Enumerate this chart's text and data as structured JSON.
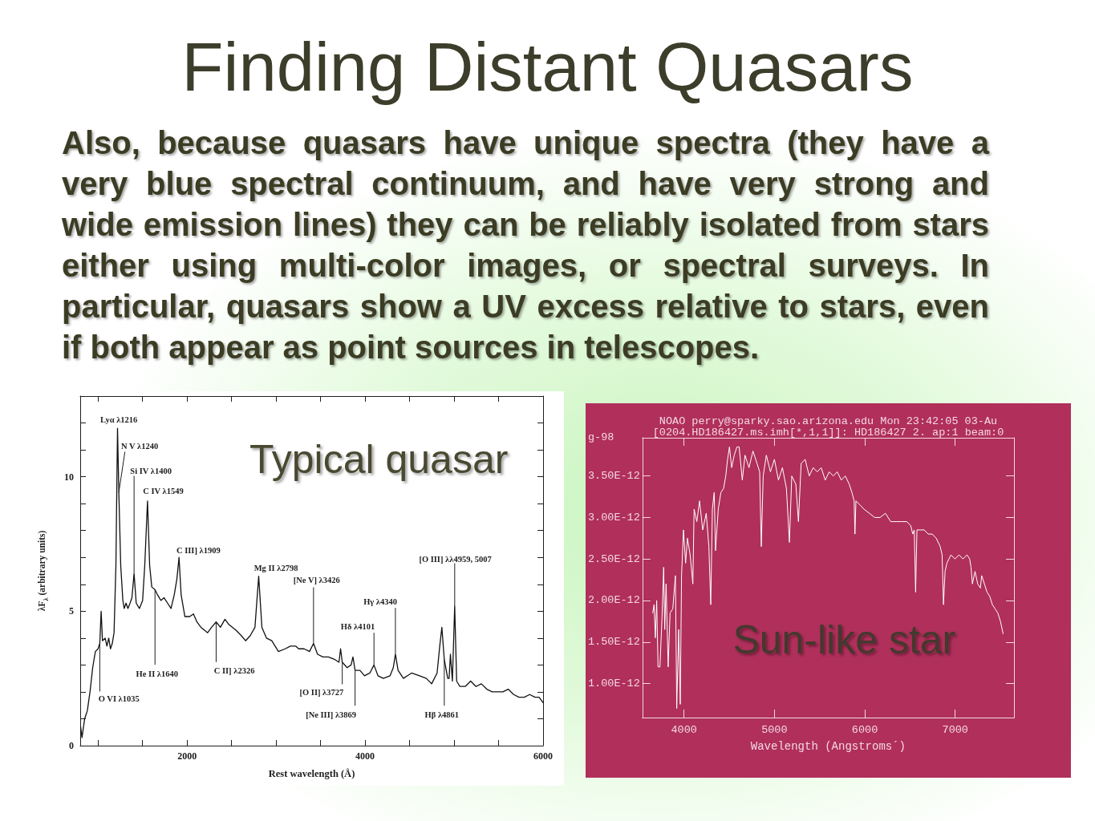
{
  "chart_data": [
    {
      "type": "other",
      "title": "Finding Distant Quasars",
      "subtitle": "Also, because quasars have unique spectra (they have a very blue spectral continuum, and have very strong and wide emission lines) they can be reliably isolated from stars either using multi-color images, or spectral surveys. In particular, quasars show a UV excess relative to stars, even if both appear as point sources in telescopes."
    },
    {
      "type": "line",
      "xlabel": "Rest wavelength (Å)",
      "ylabel": "λF$_{λ}$ (arbitrary units)",
      "color": "#111111",
      "marker": "none",
      "x": [
        805,
        820,
        850,
        880,
        910,
        940,
        970,
        1000,
        1020,
        1035,
        1050,
        1080,
        1100,
        1120,
        1140,
        1160,
        1180,
        1201,
        1219,
        1234,
        1255,
        1279,
        1294,
        1315,
        1336,
        1360,
        1381,
        1405,
        1429,
        1465,
        1501,
        1525,
        1556,
        1580,
        1604,
        1640,
        1670,
        1706,
        1742,
        1781,
        1820,
        1856,
        1886,
        1910,
        1934,
        1976,
        2030,
        2072,
        2111,
        2156,
        2231,
        2276,
        2327,
        2375,
        2426,
        2471,
        2547,
        2607,
        2658,
        2712,
        2763,
        2805,
        2841,
        2892,
        2952,
        3027,
        3102,
        3162,
        3222,
        3255,
        3315,
        3376,
        3421,
        3466,
        3526,
        3587,
        3662,
        3707,
        3725,
        3744,
        3798,
        3843,
        3864,
        3888,
        3943,
        3994,
        4054,
        4100,
        4145,
        4205,
        4281,
        4317,
        4341,
        4371,
        4431,
        4477,
        4522,
        4612,
        4688,
        4748,
        4809,
        4839,
        4863,
        4890,
        4929,
        4944,
        4959,
        4981,
        5007,
        5029,
        5065,
        5125,
        5186,
        5246,
        5306,
        5367,
        5427,
        5487,
        5548,
        5608,
        5669,
        5729,
        5789,
        5849,
        5910,
        5955,
        6000
      ],
      "values": [
        0.7,
        0.3,
        1.0,
        1.3,
        2.0,
        2.9,
        3.5,
        3.6,
        3.8,
        5.0,
        3.9,
        4.0,
        3.7,
        4.0,
        3.6,
        3.8,
        4.2,
        6.7,
        11.8,
        9.4,
        6.7,
        5.4,
        5.1,
        5.3,
        5.1,
        5.3,
        5.5,
        6.4,
        5.3,
        5.1,
        5.4,
        6.7,
        9.1,
        6.7,
        5.9,
        5.8,
        5.6,
        5.4,
        5.5,
        5.3,
        5.1,
        5.6,
        6.2,
        7.0,
        5.6,
        4.8,
        4.8,
        4.9,
        4.6,
        4.4,
        4.2,
        4.4,
        4.6,
        4.4,
        4.7,
        4.5,
        4.3,
        4.1,
        3.9,
        4.1,
        4.4,
        6.3,
        4.4,
        4.0,
        3.9,
        3.5,
        3.6,
        3.7,
        3.7,
        3.6,
        3.6,
        3.5,
        3.8,
        3.4,
        3.3,
        3.3,
        3.2,
        3.1,
        3.6,
        3.1,
        2.9,
        3.0,
        3.3,
        2.8,
        2.8,
        2.6,
        2.7,
        3.0,
        2.6,
        2.5,
        2.6,
        2.9,
        3.4,
        2.8,
        2.5,
        2.6,
        2.7,
        2.6,
        2.5,
        2.3,
        2.7,
        3.7,
        4.4,
        3.2,
        2.5,
        2.5,
        3.4,
        2.4,
        5.2,
        2.4,
        2.2,
        2.2,
        2.4,
        2.2,
        2.3,
        2.1,
        2.0,
        2.0,
        2.0,
        2.1,
        1.9,
        1.8,
        1.8,
        1.9,
        1.8,
        1.8,
        1.6
      ],
      "xlim": [
        800,
        6000
      ],
      "ylim": [
        0,
        13
      ],
      "xticks": [
        {
          "value": 1000,
          "label": null
        },
        {
          "value": 1500,
          "label": null
        },
        2000,
        {
          "value": 2500,
          "label": null
        },
        {
          "value": 3000,
          "label": null
        },
        {
          "value": 3500,
          "label": null
        },
        4000,
        {
          "value": 4500,
          "label": null
        },
        {
          "value": 5000,
          "label": null
        },
        {
          "value": 5500,
          "label": null
        },
        6000
      ],
      "yticks": [
        0,
        {
          "value": 1,
          "label": null
        },
        {
          "value": 2,
          "label": null
        },
        {
          "value": 3,
          "label": null
        },
        {
          "value": 4,
          "label": null
        },
        5,
        {
          "value": 6,
          "label": null
        },
        {
          "value": 7,
          "label": null
        },
        {
          "value": 8,
          "label": null
        },
        {
          "value": 9,
          "label": null
        },
        10,
        {
          "value": 11,
          "label": null
        },
        {
          "value": 12,
          "label": null
        }
      ],
      "annotations": [
        "Typical quasar",
        {
          "text": "Lyα λ1216",
          "x": 1219,
          "y": 11.8
        },
        {
          "text": "N V λ1240",
          "x": 1234,
          "y": 9.4
        },
        {
          "text": "Si IV λ1400",
          "x": 1405,
          "y": 6.4
        },
        {
          "text": "C IV λ1549",
          "x": 1556,
          "y": 9.1
        },
        {
          "text": "C III] λ1909",
          "x": 1910,
          "y": 7.0
        },
        {
          "text": "Mg II λ2798",
          "x": 2805,
          "y": 6.3
        },
        {
          "text": "[Ne V] λ3426",
          "x": 3421,
          "y": 3.8
        },
        {
          "text": "Hγ λ4340",
          "x": 4341,
          "y": 3.4
        },
        {
          "text": "Hδ λ4101",
          "x": 4100,
          "y": 3.0
        },
        {
          "text": "[O III] λλ4959, 5007",
          "x": 5007,
          "y": 5.2
        },
        {
          "text": "He II λ1640",
          "x": 1640,
          "y": 5.8
        },
        {
          "text": "C II] λ2326",
          "x": 2327,
          "y": 4.6
        },
        {
          "text": "O VI λ1035",
          "x": 1020,
          "y": 3.8
        },
        {
          "text": "[O II] λ3727",
          "x": 3744,
          "y": 3.1
        },
        {
          "text": "[Ne III] λ3869",
          "x": 3888,
          "y": 2.8
        },
        {
          "text": "Hβ λ4861",
          "x": 4890,
          "y": 3.2
        }
      ]
    },
    {
      "type": "line",
      "title": "NOAO perry@sparky.sao.arizona.edu Mon 23:42:05 03-Au",
      "subtitle": "[0204.HD186427.ms.imh[*,1,1]]: HD186427 2. ap:1 beam:0",
      "xlabel": "Wavelength (Angstroms´)",
      "color": "#ffffff",
      "marker": "none",
      "x": [
        3654,
        3669,
        3683,
        3698,
        3713,
        3734,
        3757,
        3775,
        3787,
        3802,
        3825,
        3846,
        3876,
        3905,
        3920,
        3941,
        3959,
        3973,
        3994,
        4018,
        4038,
        4068,
        4098,
        4112,
        4142,
        4172,
        4207,
        4246,
        4275,
        4296,
        4314,
        4334,
        4349,
        4379,
        4408,
        4438,
        4462,
        4482,
        4503,
        4527,
        4556,
        4586,
        4610,
        4645,
        4675,
        4719,
        4763,
        4808,
        4837,
        4855,
        4876,
        4911,
        4956,
        5000,
        5045,
        5089,
        5133,
        5166,
        5192,
        5237,
        5266,
        5296,
        5340,
        5385,
        5429,
        5474,
        5518,
        5562,
        5606,
        5651,
        5695,
        5740,
        5784,
        5828,
        5858,
        5882,
        5891,
        5902,
        5947,
        5991,
        6050,
        6109,
        6169,
        6228,
        6287,
        6346,
        6405,
        6465,
        6509,
        6530,
        6547,
        6562,
        6577,
        6613,
        6657,
        6701,
        6746,
        6790,
        6834,
        6855,
        6870,
        6888,
        6908,
        6953,
        6997,
        7042,
        7086,
        7130,
        7160,
        7175,
        7190,
        7219,
        7249,
        7278,
        7293,
        7323,
        7352,
        7382,
        7411,
        7441,
        7471,
        7500,
        7530
      ],
      "values": [
        1.85e-12,
        1.95e-12,
        1.55e-12,
        2e-12,
        1.2e-12,
        1.2e-12,
        1.8e-12,
        2.4e-12,
        1.65e-12,
        2.2e-12,
        1.2e-12,
        1.85e-12,
        1.9e-12,
        2.3e-12,
        7e-13,
        1.65e-12,
        7.5e-13,
        2.3e-12,
        2.85e-12,
        2.45e-12,
        2.75e-12,
        2.55e-12,
        2.2e-12,
        3.1e-12,
        2.95e-12,
        3.2e-12,
        2.85e-12,
        3.05e-12,
        2.65e-12,
        1.95e-12,
        3.1e-12,
        3.3e-12,
        2.6e-12,
        3.1e-12,
        3.3e-12,
        3.35e-12,
        3.5e-12,
        3.7e-12,
        3.85e-12,
        3.6e-12,
        3.75e-12,
        3.85e-12,
        3.85e-12,
        3.45e-12,
        3.75e-12,
        3.6e-12,
        3.8e-12,
        3.65e-12,
        3.55e-12,
        2.65e-12,
        3.5e-12,
        3.75e-12,
        3.55e-12,
        3.7e-12,
        3.45e-12,
        3.6e-12,
        3.35e-12,
        2.7e-12,
        3.5e-12,
        3.4e-12,
        2.95e-12,
        3.65e-12,
        3.7e-12,
        3.5e-12,
        3.6e-12,
        3.55e-12,
        3.6e-12,
        3.45e-12,
        3.55e-12,
        3.5e-12,
        3.55e-12,
        3.45e-12,
        3.5e-12,
        3.4e-12,
        3.3e-12,
        3.2e-12,
        2.8e-12,
        3.2e-12,
        3.15e-12,
        3.1e-12,
        3.05e-12,
        3e-12,
        3e-12,
        3.05e-12,
        2.95e-12,
        2.95e-12,
        2.95e-12,
        2.95e-12,
        2.9e-12,
        2.8e-12,
        2.85e-12,
        2.1e-12,
        2.85e-12,
        2.85e-12,
        2.85e-12,
        2.8e-12,
        2.8e-12,
        2.75e-12,
        2.65e-12,
        2.55e-12,
        1.95e-12,
        2.35e-12,
        2.45e-12,
        2.55e-12,
        2.5e-12,
        2.55e-12,
        2.5e-12,
        2.55e-12,
        2.5e-12,
        2.4e-12,
        2.2e-12,
        2.35e-12,
        2.2e-12,
        2.15e-12,
        2.3e-12,
        2.2e-12,
        2.1e-12,
        2.05e-12,
        1.95e-12,
        1.9e-12,
        1.85e-12,
        1.75e-12,
        1.6e-12
      ],
      "xlim": [
        3540,
        7650
      ],
      "ylim": [
        5.9e-13,
        3.96e-12
      ],
      "xticks": [
        4000,
        5000,
        6000,
        7000
      ],
      "yticks": [
        {
          "value": 1e-12,
          "label": "1.00E-12"
        },
        {
          "value": 1.5e-12,
          "label": "1.50E-12"
        },
        {
          "value": 2e-12,
          "label": "2.00E-12"
        },
        {
          "value": 2.5e-12,
          "label": "2.50E-12"
        },
        {
          "value": 3e-12,
          "label": "3.00E-12"
        },
        {
          "value": 3.5e-12,
          "label": "3.50E-12"
        }
      ],
      "annotations": [
        "g-98",
        "Sun-like star"
      ]
    }
  ]
}
